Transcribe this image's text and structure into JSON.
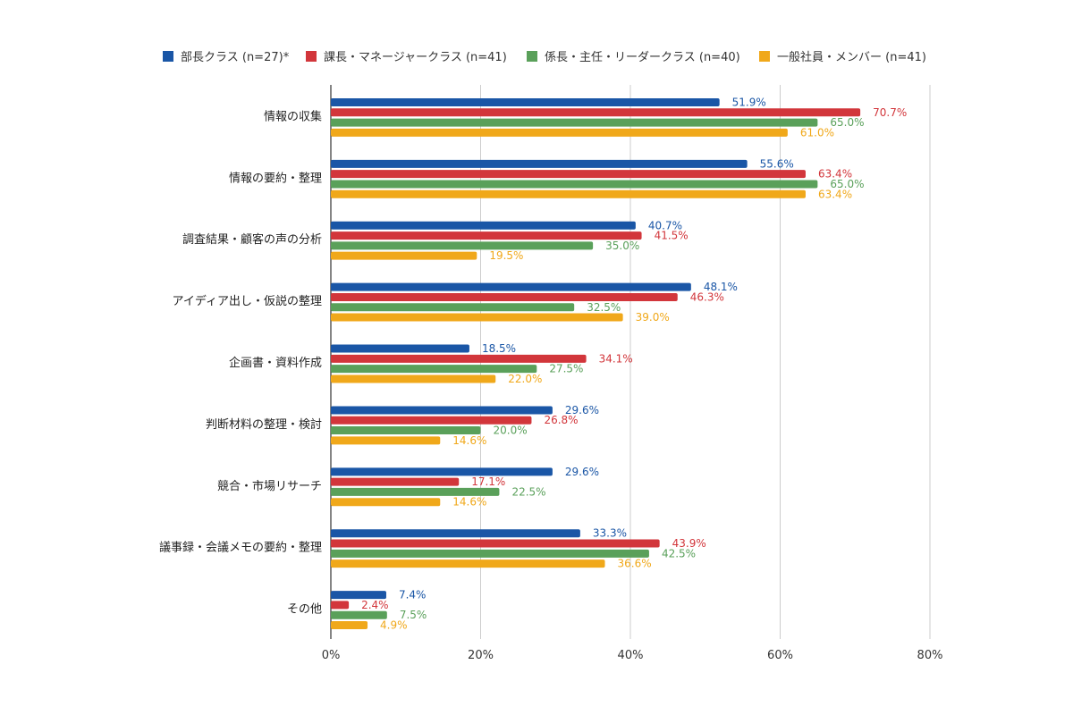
{
  "chart_data": {
    "type": "bar",
    "orientation": "horizontal",
    "categories": [
      "情報の収集",
      "情報の要約・整理",
      "調査結果・顧客の声の分析",
      "アイディア出し・仮説の整理",
      "企画書・資料作成",
      "判断材料の整理・検討",
      "競合・市場リサーチ",
      "議事録・会議メモの要約・整理",
      "その他"
    ],
    "series": [
      {
        "name": "部長クラス (n=27)*",
        "color": "#1a56a6",
        "values": [
          51.9,
          55.6,
          40.7,
          48.1,
          18.5,
          29.6,
          29.6,
          33.3,
          7.4
        ]
      },
      {
        "name": "課長・マネージャークラス (n=41)",
        "color": "#d2363b",
        "values": [
          70.7,
          63.4,
          41.5,
          46.3,
          34.1,
          26.8,
          17.1,
          43.9,
          2.4
        ]
      },
      {
        "name": "係長・主任・リーダークラス (n=40)",
        "color": "#5aa05a",
        "values": [
          65.0,
          65.0,
          35.0,
          32.5,
          27.5,
          20.0,
          22.5,
          42.5,
          7.5
        ]
      },
      {
        "name": "一般社員・メンバー (n=41)",
        "color": "#f0a81a",
        "values": [
          61.0,
          63.4,
          19.5,
          39.0,
          22.0,
          14.6,
          14.6,
          36.6,
          4.9
        ]
      }
    ],
    "value_suffix": "%",
    "xlim": [
      0,
      80
    ],
    "xticks": [
      {
        "value": 0,
        "label": "0%"
      },
      {
        "value": 20,
        "label": "20%"
      },
      {
        "value": 40,
        "label": "40%"
      },
      {
        "value": 60,
        "label": "60%"
      },
      {
        "value": 80,
        "label": "80%"
      }
    ],
    "grid": true,
    "legend_position": "top"
  }
}
